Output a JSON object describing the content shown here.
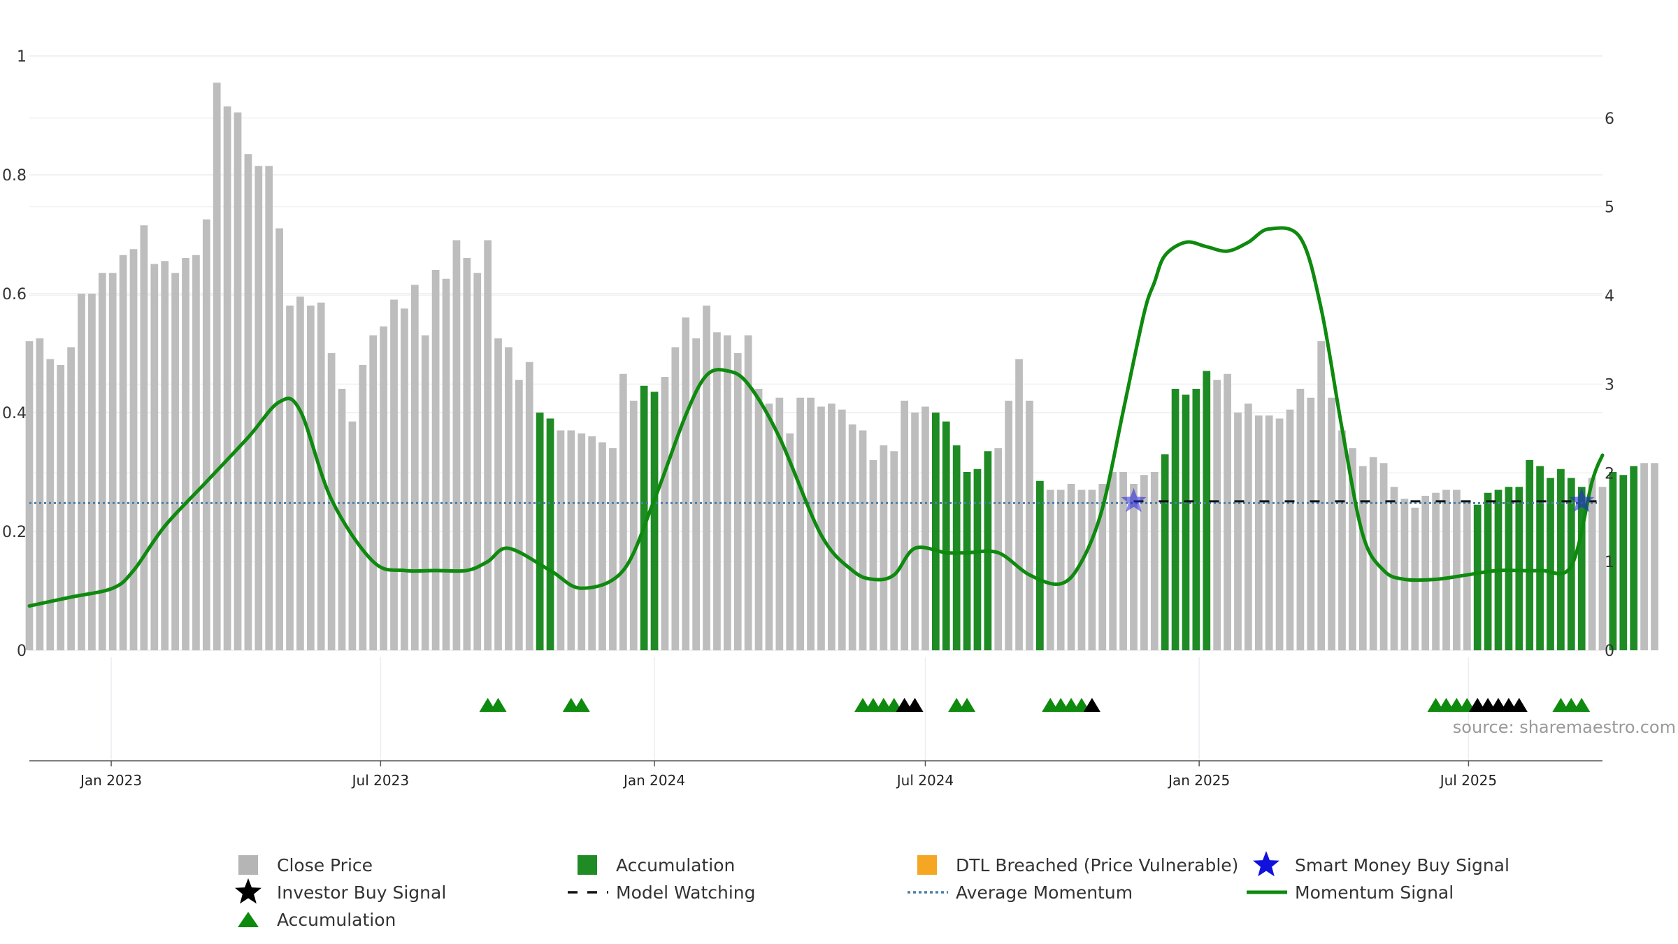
{
  "chart_data": {
    "type": "bar",
    "source": "source: sharemaestro.com",
    "left_axis": {
      "ylim": [
        0,
        1
      ],
      "ticks": [
        "0",
        "0.2",
        "0.4",
        "0.6",
        "0.8",
        "1"
      ]
    },
    "right_axis": {
      "ylim": [
        0,
        6.7
      ],
      "ticks": [
        "0",
        "1",
        "2",
        "3",
        "4",
        "5",
        "6"
      ]
    },
    "x_axis": {
      "start": "2022-11-07",
      "end": "2025-09-29",
      "ticks": [
        {
          "label": "Jan 2023",
          "date": "2023-01-01"
        },
        {
          "label": "Jul 2023",
          "date": "2023-07-01"
        },
        {
          "label": "Jan 2024",
          "date": "2024-01-01"
        },
        {
          "label": "Jul 2024",
          "date": "2024-07-01"
        },
        {
          "label": "Jan 2025",
          "date": "2025-01-01"
        },
        {
          "label": "Jul 2025",
          "date": "2025-07-01"
        }
      ]
    },
    "close_price": {
      "name": "Close Price",
      "color": "#bdbdbd",
      "weeks_start": "2022-11-07",
      "interval_days": 7,
      "values": [
        0.52,
        0.525,
        0.49,
        0.48,
        0.51,
        0.6,
        0.6,
        0.635,
        0.635,
        0.665,
        0.675,
        0.715,
        0.65,
        0.655,
        0.635,
        0.66,
        0.665,
        0.725,
        0.955,
        0.915,
        0.905,
        0.835,
        0.815,
        0.815,
        0.71,
        0.58,
        0.595,
        0.58,
        0.585,
        0.5,
        0.44,
        0.385,
        0.48,
        0.53,
        0.545,
        0.59,
        0.575,
        0.615,
        0.53,
        0.64,
        0.625,
        0.69,
        0.66,
        0.635,
        0.69,
        0.525,
        0.51,
        0.455,
        0.485,
        0.4,
        0.39,
        0.37,
        0.37,
        0.365,
        0.36,
        0.35,
        0.34,
        0.465,
        0.42,
        0.445,
        0.435,
        0.46,
        0.51,
        0.56,
        0.525,
        0.58,
        0.535,
        0.53,
        0.5,
        0.53,
        0.44,
        0.415,
        0.425,
        0.365,
        0.425,
        0.425,
        0.41,
        0.415,
        0.405,
        0.38,
        0.37,
        0.32,
        0.345,
        0.335,
        0.42,
        0.4,
        0.41,
        0.4,
        0.385,
        0.345,
        0.3,
        0.305,
        0.335,
        0.34,
        0.42,
        0.49,
        0.42,
        0.285,
        0.27,
        0.27,
        0.28,
        0.27,
        0.27,
        0.28,
        0.3,
        0.3,
        0.28,
        0.295,
        0.3,
        0.33,
        0.44,
        0.43,
        0.44,
        0.47,
        0.455,
        0.465,
        0.4,
        0.415,
        0.395,
        0.395,
        0.39,
        0.405,
        0.44,
        0.425,
        0.52,
        0.425,
        0.37,
        0.34,
        0.31,
        0.325,
        0.315,
        0.275,
        0.255,
        0.24,
        0.26,
        0.265,
        0.27,
        0.27,
        0.25,
        0.245,
        0.265,
        0.27,
        0.275,
        0.275,
        0.32,
        0.31,
        0.29,
        0.305,
        0.29,
        0.275,
        0.29,
        0.275,
        0.3,
        0.295,
        0.31,
        0.315,
        0.315
      ]
    },
    "accumulation_weeks": [
      49,
      50,
      59,
      60,
      87,
      88,
      89,
      90,
      91,
      92,
      97,
      109,
      110,
      111,
      112,
      113,
      139,
      140,
      141,
      142,
      143,
      144,
      145,
      146,
      147,
      148,
      149,
      152,
      153,
      154
    ],
    "accumulation_color": "#1f8b24",
    "momentum_signal": {
      "name": "Momentum Signal",
      "color": "#0e8a0e",
      "dates": [
        "2022-11-07",
        "2022-12-05",
        "2023-01-02",
        "2023-01-16",
        "2023-02-06",
        "2023-03-06",
        "2023-04-03",
        "2023-04-24",
        "2023-05-08",
        "2023-05-29",
        "2023-06-26",
        "2023-07-17",
        "2023-08-07",
        "2023-08-28",
        "2023-09-11",
        "2023-09-25",
        "2023-10-23",
        "2023-11-13",
        "2023-12-11",
        "2024-01-01",
        "2024-01-22",
        "2024-02-05",
        "2024-02-19",
        "2024-03-04",
        "2024-03-25",
        "2024-04-22",
        "2024-05-13",
        "2024-05-27",
        "2024-06-10",
        "2024-06-24",
        "2024-07-15",
        "2024-07-29",
        "2024-08-19",
        "2024-09-09",
        "2024-09-30",
        "2024-10-14",
        "2024-10-28",
        "2024-11-11",
        "2024-11-25",
        "2024-12-02",
        "2024-12-09",
        "2024-12-23",
        "2025-01-06",
        "2025-01-20",
        "2025-02-03",
        "2025-02-17",
        "2025-03-10",
        "2025-03-24",
        "2025-04-07",
        "2025-04-21",
        "2025-05-05",
        "2025-05-19",
        "2025-06-09",
        "2025-06-30",
        "2025-07-21",
        "2025-08-18",
        "2025-09-08",
        "2025-09-22",
        "2025-09-29"
      ],
      "values": [
        0.5,
        0.6,
        0.7,
        0.9,
        1.4,
        1.9,
        2.4,
        2.8,
        2.7,
        1.7,
        1.0,
        0.9,
        0.9,
        0.9,
        1.0,
        1.15,
        0.9,
        0.7,
        0.9,
        1.7,
        2.65,
        3.1,
        3.15,
        3.0,
        2.4,
        1.3,
        0.9,
        0.8,
        0.85,
        1.15,
        1.1,
        1.1,
        1.1,
        0.85,
        0.75,
        1.0,
        1.6,
        2.7,
        3.8,
        4.15,
        4.45,
        4.6,
        4.55,
        4.5,
        4.6,
        4.75,
        4.65,
        3.85,
        2.5,
        1.3,
        0.9,
        0.8,
        0.8,
        0.85,
        0.9,
        0.9,
        0.95,
        1.9,
        2.2
      ]
    },
    "average_momentum": {
      "name": "Average Momentum",
      "value": 1.66,
      "color": "#4c7fa8"
    },
    "model_watching": {
      "name": "Model Watching",
      "start": "2024-11-18",
      "end": "2025-09-25",
      "value": 1.68,
      "color": "#111111"
    },
    "smart_money_buy": {
      "name": "Smart Money Buy Signal",
      "color": "#2222dd",
      "points": [
        {
          "date": "2024-11-18",
          "value": 1.68
        },
        {
          "date": "2025-09-15",
          "value": 1.68
        }
      ]
    },
    "triangles": [
      {
        "date": "2023-09-11",
        "color": "green"
      },
      {
        "date": "2023-09-18",
        "color": "green"
      },
      {
        "date": "2023-11-06",
        "color": "green"
      },
      {
        "date": "2023-11-13",
        "color": "green"
      },
      {
        "date": "2024-05-20",
        "color": "green"
      },
      {
        "date": "2024-05-27",
        "color": "green"
      },
      {
        "date": "2024-06-03",
        "color": "green"
      },
      {
        "date": "2024-06-10",
        "color": "green"
      },
      {
        "date": "2024-06-17",
        "color": "black"
      },
      {
        "date": "2024-06-24",
        "color": "black"
      },
      {
        "date": "2024-07-22",
        "color": "green"
      },
      {
        "date": "2024-07-29",
        "color": "green"
      },
      {
        "date": "2024-09-23",
        "color": "green"
      },
      {
        "date": "2024-09-30",
        "color": "green"
      },
      {
        "date": "2024-10-07",
        "color": "green"
      },
      {
        "date": "2024-10-14",
        "color": "green"
      },
      {
        "date": "2024-10-21",
        "color": "black"
      },
      {
        "date": "2025-06-09",
        "color": "green"
      },
      {
        "date": "2025-06-16",
        "color": "green"
      },
      {
        "date": "2025-06-23",
        "color": "green"
      },
      {
        "date": "2025-06-30",
        "color": "green"
      },
      {
        "date": "2025-07-07",
        "color": "black"
      },
      {
        "date": "2025-07-14",
        "color": "black"
      },
      {
        "date": "2025-07-21",
        "color": "black"
      },
      {
        "date": "2025-07-28",
        "color": "black"
      },
      {
        "date": "2025-08-04",
        "color": "black"
      },
      {
        "date": "2025-09-01",
        "color": "green"
      },
      {
        "date": "2025-09-08",
        "color": "green"
      },
      {
        "date": "2025-09-15",
        "color": "green"
      }
    ],
    "legend": [
      {
        "label": "Close Price",
        "symbol": "square",
        "color": "#b5b5b5"
      },
      {
        "label": "Accumulation",
        "symbol": "square",
        "color": "#1f8b24"
      },
      {
        "label": "DTL Breached (Price Vulnerable)",
        "symbol": "square",
        "color": "#f5a623"
      },
      {
        "label": "Smart Money Buy Signal",
        "symbol": "star",
        "color": "#1111dd"
      },
      {
        "label": "Investor Buy Signal",
        "symbol": "star",
        "color": "#000000"
      },
      {
        "label": "Model Watching",
        "symbol": "dash",
        "color": "#111111"
      },
      {
        "label": "Average Momentum",
        "symbol": "dotted",
        "color": "#4c7fa8"
      },
      {
        "label": "Momentum Signal",
        "symbol": "line",
        "color": "#0e8a0e"
      },
      {
        "label": "Accumulation",
        "symbol": "triangle",
        "color": "#0e8a0e"
      }
    ]
  }
}
